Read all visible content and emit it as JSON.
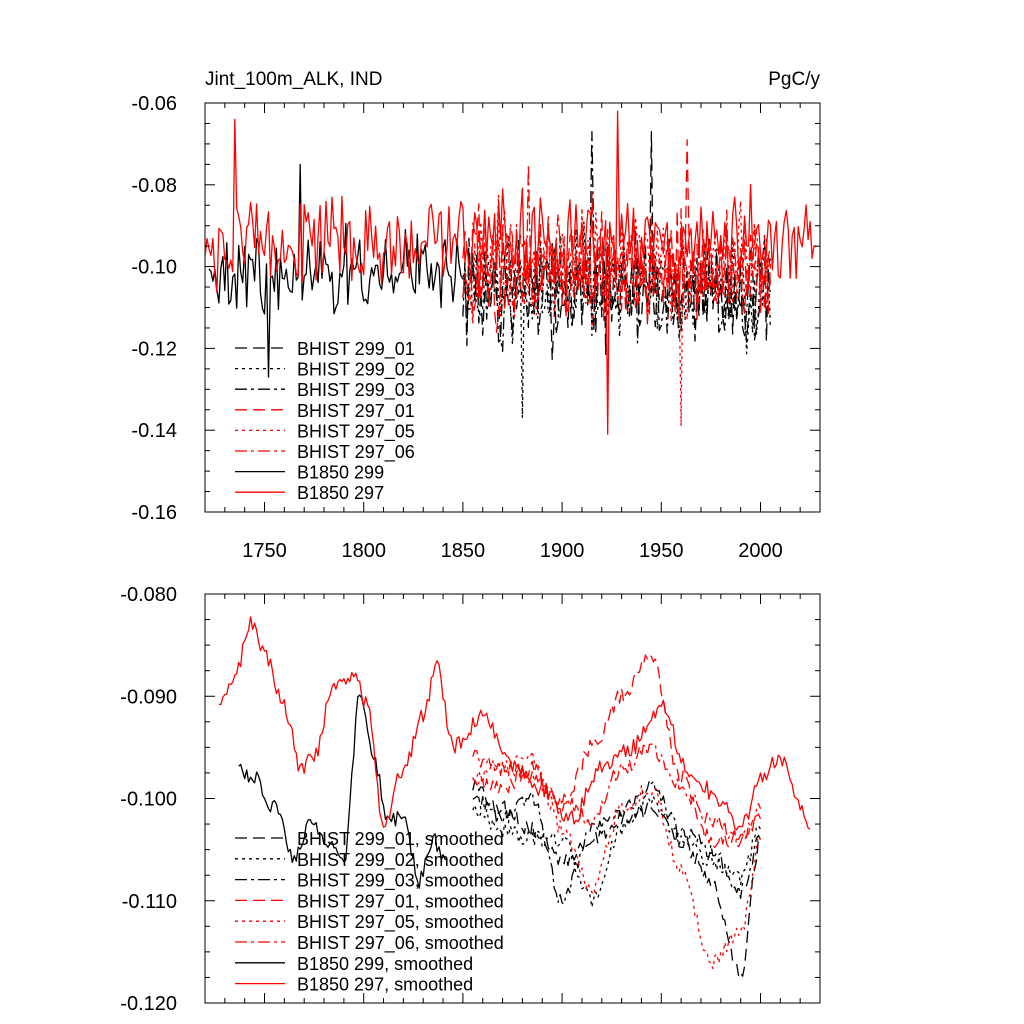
{
  "header": {
    "title_left": "Jint_100m_ALK, IND",
    "title_right": "PgC/y"
  },
  "chart_data": [
    {
      "type": "line",
      "title": "Jint_100m_ALK, IND",
      "units": "PgC/y",
      "xlim": [
        1720,
        2030
      ],
      "ylim": [
        -0.16,
        -0.06
      ],
      "x_ticks": [
        1750,
        1800,
        1850,
        1900,
        1950,
        2000
      ],
      "x_tick_labels": [
        "1750",
        "1800",
        "1850",
        "1900",
        "1950",
        "2000"
      ],
      "y_ticks": [
        -0.16,
        -0.14,
        -0.12,
        -0.1,
        -0.08,
        -0.06
      ],
      "y_tick_labels": [
        "-0.16",
        "-0.14",
        "-0.12",
        "-0.10",
        "-0.08",
        "-0.06"
      ],
      "grid": false,
      "legend_position": "bottom-left",
      "series": [
        {
          "name": "BHIST 299_01",
          "color": "#000000",
          "dash": "longdash",
          "x_range": [
            1850,
            2005
          ],
          "mean": -0.106,
          "amplitude": 0.014,
          "peaks": [
            [
              1945,
              -0.067
            ]
          ]
        },
        {
          "name": "BHIST 299_02",
          "color": "#000000",
          "dash": "dot",
          "x_range": [
            1850,
            2005
          ],
          "mean": -0.106,
          "amplitude": 0.014,
          "peaks": [
            [
              1880,
              -0.137
            ]
          ]
        },
        {
          "name": "BHIST 299_03",
          "color": "#000000",
          "dash": "dashdot",
          "x_range": [
            1850,
            2005
          ],
          "mean": -0.106,
          "amplitude": 0.014,
          "peaks": [
            [
              1915,
              -0.067
            ]
          ]
        },
        {
          "name": "BHIST 297_01",
          "color": "#ff0000",
          "dash": "longdash",
          "x_range": [
            1850,
            2005
          ],
          "mean": -0.1,
          "amplitude": 0.014,
          "peaks": [
            [
              1963,
              -0.069
            ]
          ]
        },
        {
          "name": "BHIST 297_05",
          "color": "#ff0000",
          "dash": "dot",
          "x_range": [
            1850,
            2005
          ],
          "mean": -0.1,
          "amplitude": 0.014,
          "peaks": [
            [
              1960,
              -0.139
            ]
          ]
        },
        {
          "name": "BHIST 297_06",
          "color": "#ff0000",
          "dash": "dashdot",
          "x_range": [
            1850,
            2005
          ],
          "mean": -0.1,
          "amplitude": 0.014,
          "peaks": [
            [
              1883,
              -0.075
            ]
          ]
        },
        {
          "name": "B1850 299",
          "color": "#000000",
          "dash": "solid",
          "x_range": [
            1722,
            1851
          ],
          "mean": -0.101,
          "amplitude": 0.01,
          "peaks": [
            [
              1752,
              -0.127
            ],
            [
              1768,
              -0.075
            ]
          ]
        },
        {
          "name": "B1850 297",
          "color": "#ff0000",
          "dash": "solid",
          "x_range": [
            1720,
            2028
          ],
          "mean": -0.094,
          "amplitude": 0.012,
          "peaks": [
            [
              1735,
              -0.064
            ],
            [
              1923,
              -0.141
            ],
            [
              1928,
              -0.062
            ]
          ]
        }
      ]
    },
    {
      "type": "line",
      "xlim": [
        1720,
        2030
      ],
      "ylim": [
        -0.12,
        -0.08
      ],
      "x_ticks": [
        1750,
        1800,
        1850,
        1900,
        1950,
        2000
      ],
      "y_ticks": [
        -0.12,
        -0.11,
        -0.1,
        -0.09,
        -0.08
      ],
      "y_tick_labels": [
        "-0.120",
        "-0.110",
        "-0.100",
        "-0.090",
        "-0.080"
      ],
      "grid": false,
      "legend_position": "bottom-left",
      "series": [
        {
          "name": "BHIST 299_01, smoothed",
          "color": "#000000",
          "dash": "longdash",
          "x": [
            1855,
            1870,
            1885,
            1900,
            1915,
            1930,
            1945,
            1960,
            1975,
            1990,
            2000
          ],
          "y": [
            -0.099,
            -0.101,
            -0.103,
            -0.106,
            -0.104,
            -0.102,
            -0.101,
            -0.104,
            -0.108,
            -0.117,
            -0.104
          ]
        },
        {
          "name": "BHIST 299_02, smoothed",
          "color": "#000000",
          "dash": "dot",
          "x": [
            1855,
            1870,
            1885,
            1900,
            1915,
            1930,
            1945,
            1960,
            1975,
            1990,
            2000
          ],
          "y": [
            -0.101,
            -0.103,
            -0.104,
            -0.104,
            -0.11,
            -0.103,
            -0.1,
            -0.104,
            -0.106,
            -0.108,
            -0.103
          ]
        },
        {
          "name": "BHIST 299_03, smoothed",
          "color": "#000000",
          "dash": "dashdot",
          "x": [
            1855,
            1870,
            1885,
            1900,
            1915,
            1930,
            1945,
            1960,
            1975,
            1990,
            2000
          ],
          "y": [
            -0.1,
            -0.102,
            -0.1,
            -0.11,
            -0.103,
            -0.101,
            -0.099,
            -0.103,
            -0.105,
            -0.109,
            -0.104
          ]
        },
        {
          "name": "BHIST 297_01, smoothed",
          "color": "#ff0000",
          "dash": "longdash",
          "x": [
            1855,
            1870,
            1885,
            1900,
            1915,
            1930,
            1945,
            1960,
            1975,
            1990,
            2000
          ],
          "y": [
            -0.098,
            -0.099,
            -0.097,
            -0.101,
            -0.095,
            -0.09,
            -0.086,
            -0.098,
            -0.104,
            -0.104,
            -0.102
          ]
        },
        {
          "name": "BHIST 297_05, smoothed",
          "color": "#ff0000",
          "dash": "dot",
          "x": [
            1855,
            1870,
            1885,
            1900,
            1915,
            1930,
            1945,
            1960,
            1975,
            1990,
            2000
          ],
          "y": [
            -0.098,
            -0.097,
            -0.096,
            -0.103,
            -0.109,
            -0.101,
            -0.099,
            -0.107,
            -0.116,
            -0.113,
            -0.104
          ]
        },
        {
          "name": "BHIST 297_06, smoothed",
          "color": "#ff0000",
          "dash": "dashdot",
          "x": [
            1855,
            1870,
            1885,
            1900,
            1915,
            1930,
            1945,
            1960,
            1975,
            1990,
            2000
          ],
          "y": [
            -0.096,
            -0.097,
            -0.098,
            -0.1,
            -0.102,
            -0.097,
            -0.095,
            -0.099,
            -0.102,
            -0.104,
            -0.101
          ]
        },
        {
          "name": "B1850 299, smoothed",
          "color": "#000000",
          "dash": "solid",
          "x": [
            1737,
            1745,
            1755,
            1765,
            1773,
            1782,
            1790,
            1798,
            1805,
            1812,
            1820,
            1828,
            1835,
            1842
          ],
          "y": [
            -0.097,
            -0.098,
            -0.101,
            -0.106,
            -0.102,
            -0.104,
            -0.106,
            -0.09,
            -0.096,
            -0.102,
            -0.102,
            -0.108,
            -0.104,
            -0.106
          ]
        },
        {
          "name": "B1850 297, smoothed",
          "color": "#ff0000",
          "dash": "solid",
          "x": [
            1727,
            1735,
            1743,
            1750,
            1760,
            1768,
            1775,
            1785,
            1795,
            1802,
            1810,
            1820,
            1830,
            1837,
            1845,
            1860,
            1875,
            1890,
            1905,
            1920,
            1935,
            1950,
            1965,
            1980,
            1990,
            2000,
            2010,
            2020,
            2025
          ],
          "y": [
            -0.091,
            -0.088,
            -0.083,
            -0.086,
            -0.091,
            -0.097,
            -0.096,
            -0.089,
            -0.088,
            -0.091,
            -0.103,
            -0.097,
            -0.092,
            -0.087,
            -0.095,
            -0.092,
            -0.097,
            -0.099,
            -0.102,
            -0.097,
            -0.095,
            -0.091,
            -0.098,
            -0.1,
            -0.103,
            -0.098,
            -0.096,
            -0.101,
            -0.103
          ]
        }
      ]
    }
  ]
}
